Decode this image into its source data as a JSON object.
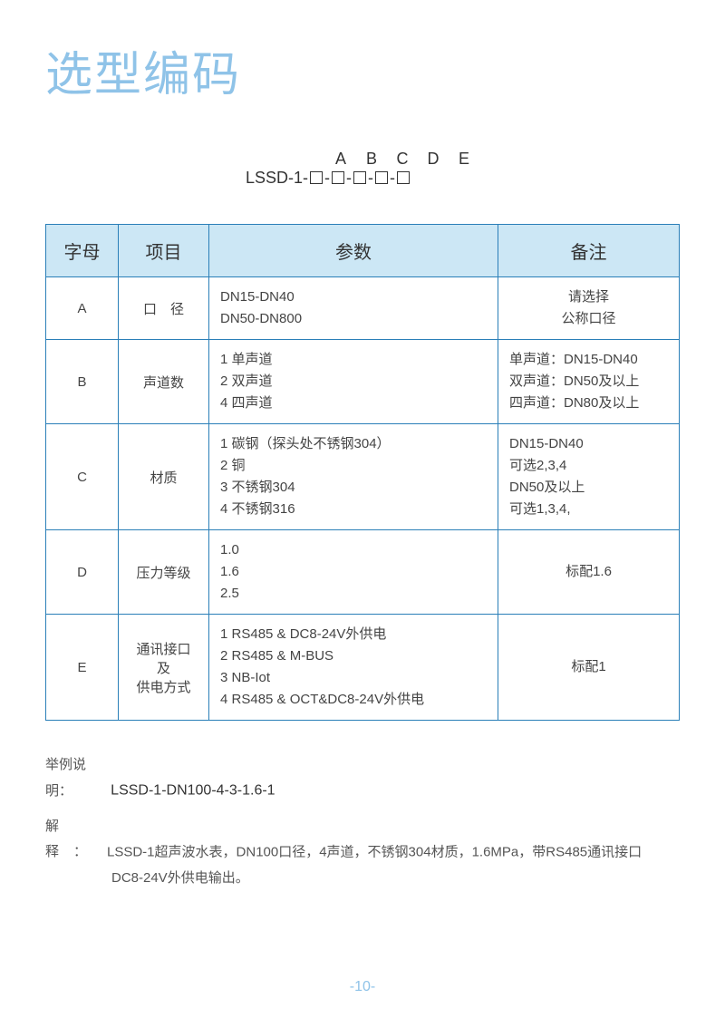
{
  "title": "选型编码",
  "code_template": {
    "labels": [
      "A",
      "B",
      "C",
      "D",
      "E"
    ],
    "prefix": "LSSD-1-"
  },
  "table": {
    "headers": [
      "字母",
      "项目",
      "参数",
      "备注"
    ],
    "rows": [
      {
        "letter": "A",
        "item": "口　径",
        "param": "DN15-DN40\nDN50-DN800",
        "note": "请选择\n公称口径",
        "note_align": "center"
      },
      {
        "letter": "B",
        "item": "声道数",
        "param": "1 单声道\n2 双声道\n4 四声道",
        "note": "单声道：DN15-DN40\n双声道：DN50及以上\n四声道：DN80及以上",
        "note_align": "left",
        "note_small": true
      },
      {
        "letter": "C",
        "item": "材质",
        "param": "1 碳钢（探头处不锈钢304）\n2 铜\n3 不锈钢304\n4 不锈钢316",
        "note": "DN15-DN40\n可选2,3,4\nDN50及以上\n可选1,3,4,",
        "note_align": "left"
      },
      {
        "letter": "D",
        "item": "压力等级",
        "param": "1.0\n1.6\n2.5",
        "note": "标配1.6",
        "note_align": "center"
      },
      {
        "letter": "E",
        "item": "通讯接口\n及\n供电方式",
        "param": "1 RS485 & DC8-24V外供电\n2 RS485 & M-BUS\n3 NB-Iot\n4 RS485 & OCT&DC8-24V外供电",
        "note": "标配1",
        "note_align": "center"
      }
    ]
  },
  "example": {
    "label1": "举例说明：",
    "code": "LSSD-1-DN100-4-3-1.6-1",
    "label2": "解释：",
    "text1": "LSSD-1超声波水表，DN100口径，4声道，不锈钢304材质，1.6MPa，带RS485通讯接口",
    "text2": "DC8-24V外供电输出。"
  },
  "page_number": "-10-",
  "colors": {
    "title": "#8fc3e8",
    "border": "#2a7fb8",
    "header_bg": "#cce7f5",
    "text": "#555",
    "page_num": "#8fc3e8"
  }
}
